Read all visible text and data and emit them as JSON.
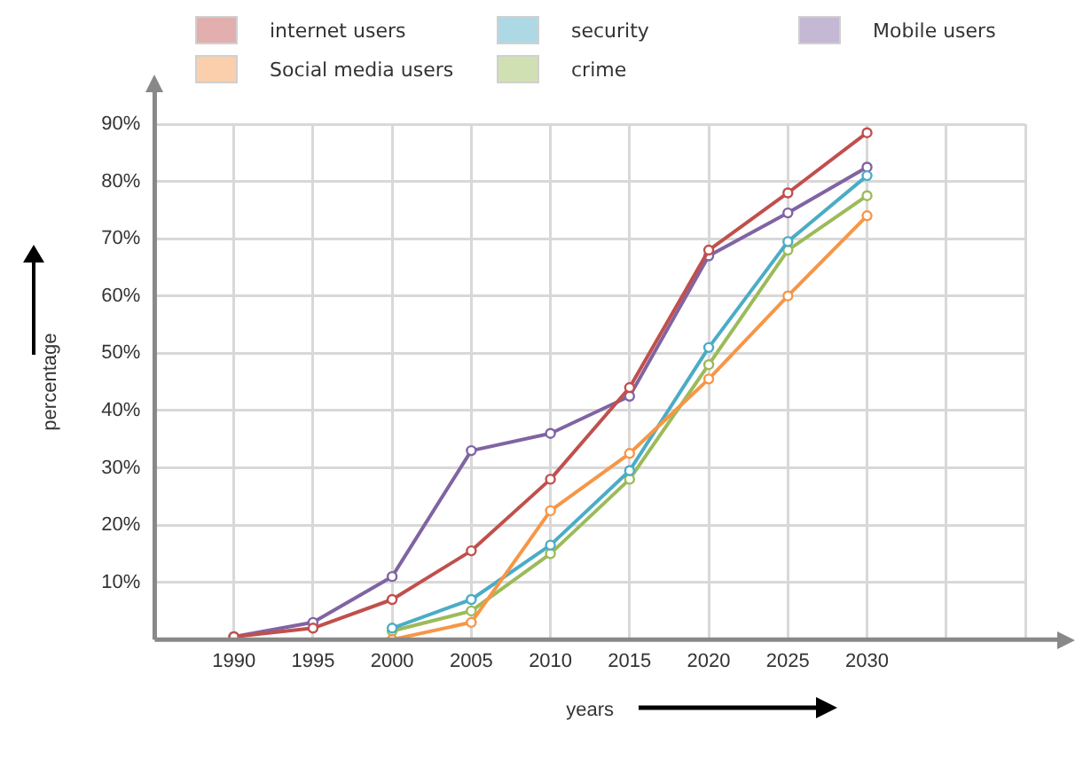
{
  "chart_data": {
    "type": "line",
    "xlabel": "years",
    "ylabel": "percentage",
    "x": [
      1990,
      1995,
      2000,
      2005,
      2010,
      2015,
      2020,
      2025,
      2030
    ],
    "series": [
      {
        "name": "internet users",
        "color": "#c0504d",
        "values": [
          0.5,
          2,
          7,
          15.5,
          28,
          44,
          68,
          78,
          88.5
        ]
      },
      {
        "name": "Social media users",
        "color": "#f79646",
        "values": [
          null,
          null,
          0,
          3,
          22.5,
          32.5,
          45.5,
          60,
          74
        ]
      },
      {
        "name": "security",
        "color": "#4bacc6",
        "values": [
          null,
          null,
          2,
          7,
          16.5,
          29.5,
          51,
          69.5,
          81
        ]
      },
      {
        "name": "crime",
        "color": "#9bbb59",
        "values": [
          null,
          null,
          1.5,
          5,
          15,
          28,
          48,
          68,
          77.5
        ]
      },
      {
        "name": "Mobile users",
        "color": "#8064a2",
        "values": [
          0.5,
          3,
          11,
          33,
          36,
          42.5,
          67,
          74.5,
          82.5
        ]
      }
    ],
    "xlim": [
      1985,
      2040
    ],
    "xticks": [
      1990,
      1995,
      2000,
      2005,
      2010,
      2015,
      2020,
      2025,
      2030,
      {
        "value": 2035,
        "label": null
      },
      {
        "value": 2040,
        "label": null
      }
    ],
    "ylim": [
      0,
      90
    ],
    "yticks": [
      {
        "value": 0,
        "label": null
      },
      {
        "value": 10,
        "label": "10%"
      },
      {
        "value": 20,
        "label": "20%"
      },
      {
        "value": 30,
        "label": "30%"
      },
      {
        "value": 40,
        "label": "40%"
      },
      {
        "value": 50,
        "label": "50%"
      },
      {
        "value": 60,
        "label": "60%"
      },
      {
        "value": 70,
        "label": "70%"
      },
      {
        "value": 80,
        "label": "80%"
      },
      {
        "value": 90,
        "label": "90%"
      }
    ],
    "grid": true,
    "legend": "top",
    "marker": "circle",
    "line_style": "solid"
  }
}
